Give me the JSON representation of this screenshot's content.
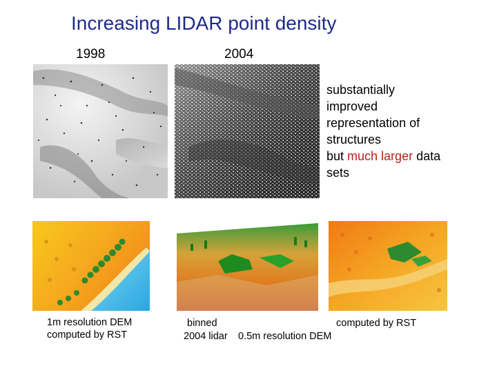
{
  "slide": {
    "title": "Increasing LIDAR point density",
    "year_1998": "1998",
    "year_2004": "2004",
    "description": {
      "line1": "substantially",
      "line2": "improved",
      "line3": "representation of",
      "line4": "structures",
      "line5_prefix": "but ",
      "line5_highlight": "much larger",
      "line5_suffix": " data",
      "line6": "sets",
      "highlight_color": "#b8221b"
    },
    "captions": {
      "left_line1": "1m resolution DEM",
      "left_line2": "computed by RST",
      "middle_line1": "binned",
      "middle_line2": "2004 lidar",
      "right_line1": "computed by RST",
      "right_line2": "0.5m resolution DEM"
    },
    "title_color": "#1f2a8a"
  }
}
